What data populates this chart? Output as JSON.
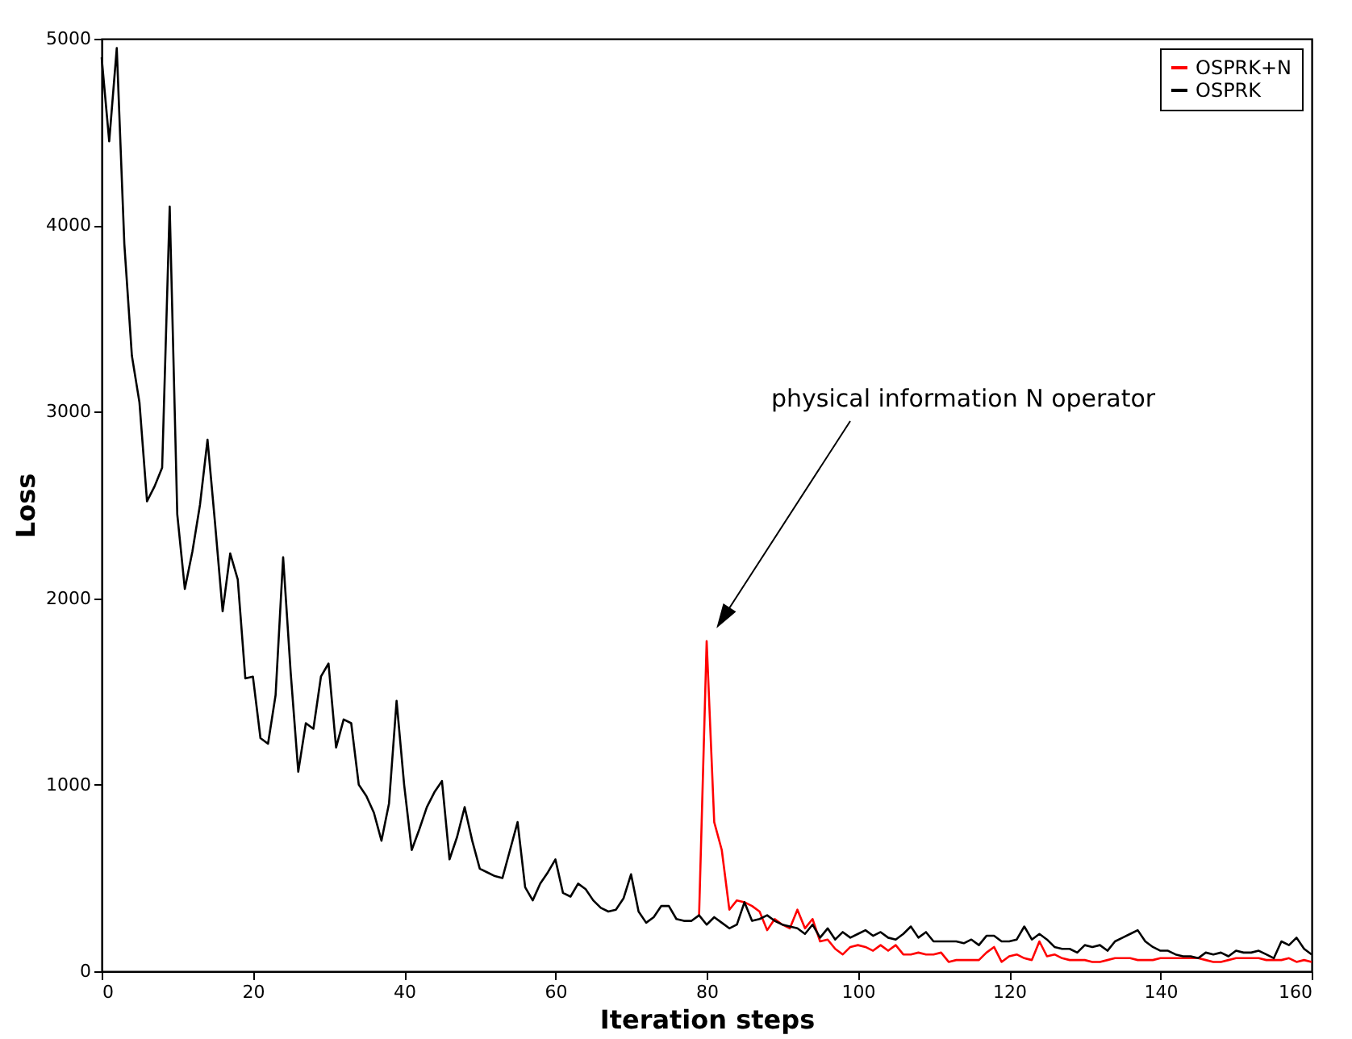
{
  "chart_data": {
    "type": "line",
    "xlabel": "Iteration steps",
    "ylabel": "Loss",
    "xlim": [
      0,
      160
    ],
    "xticks": [
      0,
      20,
      40,
      60,
      80,
      100,
      120,
      140,
      160
    ],
    "ylim": [
      0,
      5000
    ],
    "yticks": [
      0,
      1000,
      2000,
      3000,
      4000,
      5000
    ],
    "grid": false,
    "legend": "top right",
    "marker": "none",
    "line_style": "solid",
    "series": [
      {
        "name": "OSPRK+N",
        "color": "#ff0000",
        "x": [
          79,
          80,
          81,
          82,
          83,
          84,
          85,
          86,
          87,
          88,
          89,
          90,
          91,
          92,
          93,
          94,
          95,
          96,
          97,
          98,
          99,
          100,
          101,
          102,
          103,
          104,
          105,
          106,
          107,
          108,
          109,
          110,
          111,
          112,
          113,
          114,
          115,
          116,
          117,
          118,
          119,
          120,
          121,
          122,
          123,
          124,
          125,
          126,
          127,
          128,
          129,
          130,
          131,
          132,
          133,
          134,
          135,
          136,
          137,
          138,
          139,
          140,
          141,
          142,
          143,
          144,
          145,
          146,
          147,
          148,
          149,
          150,
          151,
          152,
          153,
          154,
          155,
          156,
          157,
          158,
          159,
          160
        ],
        "values": [
          300,
          1770,
          800,
          650,
          330,
          380,
          370,
          350,
          320,
          220,
          280,
          250,
          230,
          330,
          230,
          280,
          160,
          170,
          120,
          90,
          130,
          140,
          130,
          110,
          140,
          110,
          140,
          90,
          90,
          100,
          90,
          90,
          100,
          50,
          60,
          60,
          60,
          60,
          100,
          130,
          50,
          80,
          90,
          70,
          60,
          160,
          80,
          90,
          70,
          60,
          60,
          60,
          50,
          50,
          60,
          70,
          70,
          70,
          60,
          60,
          60,
          70,
          70,
          70,
          70,
          70,
          70,
          60,
          50,
          50,
          60,
          70,
          70,
          70,
          70,
          60,
          60,
          60,
          70,
          50,
          60,
          50
        ]
      },
      {
        "name": "OSPRK",
        "color": "#000000",
        "x": [
          0,
          1,
          2,
          3,
          4,
          5,
          6,
          7,
          8,
          9,
          10,
          11,
          12,
          13,
          14,
          15,
          16,
          17,
          18,
          19,
          20,
          21,
          22,
          23,
          24,
          25,
          26,
          27,
          28,
          29,
          30,
          31,
          32,
          33,
          34,
          35,
          36,
          37,
          38,
          39,
          40,
          41,
          42,
          43,
          44,
          45,
          46,
          47,
          48,
          49,
          50,
          51,
          52,
          53,
          54,
          55,
          56,
          57,
          58,
          59,
          60,
          61,
          62,
          63,
          64,
          65,
          66,
          67,
          68,
          69,
          70,
          71,
          72,
          73,
          74,
          75,
          76,
          77,
          78,
          79,
          80,
          81,
          82,
          83,
          84,
          85,
          86,
          87,
          88,
          89,
          90,
          91,
          92,
          93,
          94,
          95,
          96,
          97,
          98,
          99,
          100,
          101,
          102,
          103,
          104,
          105,
          106,
          107,
          108,
          109,
          110,
          111,
          112,
          113,
          114,
          115,
          116,
          117,
          118,
          119,
          120,
          121,
          122,
          123,
          124,
          125,
          126,
          127,
          128,
          129,
          130,
          131,
          132,
          133,
          134,
          135,
          136,
          137,
          138,
          139,
          140,
          141,
          142,
          143,
          144,
          145,
          146,
          147,
          148,
          149,
          150,
          151,
          152,
          153,
          154,
          155,
          156,
          157,
          158,
          159,
          160
        ],
        "values": [
          4900,
          4450,
          4950,
          3900,
          3300,
          3050,
          2520,
          2600,
          2700,
          4100,
          2450,
          2050,
          2250,
          2500,
          2850,
          2400,
          1930,
          2240,
          2100,
          1570,
          1580,
          1250,
          1220,
          1480,
          2220,
          1600,
          1070,
          1330,
          1300,
          1580,
          1650,
          1200,
          1350,
          1330,
          1000,
          940,
          850,
          700,
          900,
          1450,
          1000,
          650,
          760,
          880,
          960,
          1020,
          600,
          720,
          880,
          700,
          550,
          530,
          510,
          500,
          650,
          800,
          450,
          380,
          470,
          530,
          600,
          420,
          400,
          470,
          440,
          380,
          340,
          320,
          330,
          390,
          520,
          320,
          260,
          290,
          350,
          350,
          280,
          270,
          270,
          300,
          250,
          290,
          260,
          230,
          250,
          370,
          270,
          280,
          300,
          270,
          250,
          240,
          230,
          200,
          250,
          180,
          230,
          170,
          210,
          180,
          200,
          220,
          190,
          210,
          180,
          170,
          200,
          240,
          180,
          210,
          160,
          160,
          160,
          160,
          150,
          170,
          140,
          190,
          190,
          160,
          160,
          170,
          240,
          170,
          200,
          170,
          130,
          120,
          120,
          100,
          140,
          130,
          140,
          110,
          160,
          180,
          200,
          220,
          160,
          130,
          110,
          110,
          90,
          80,
          80,
          70,
          100,
          90,
          100,
          80,
          110,
          100,
          100,
          110,
          90,
          70,
          160,
          140,
          180,
          120,
          90
        ]
      }
    ],
    "annotations": [
      "physical information N operator"
    ]
  }
}
